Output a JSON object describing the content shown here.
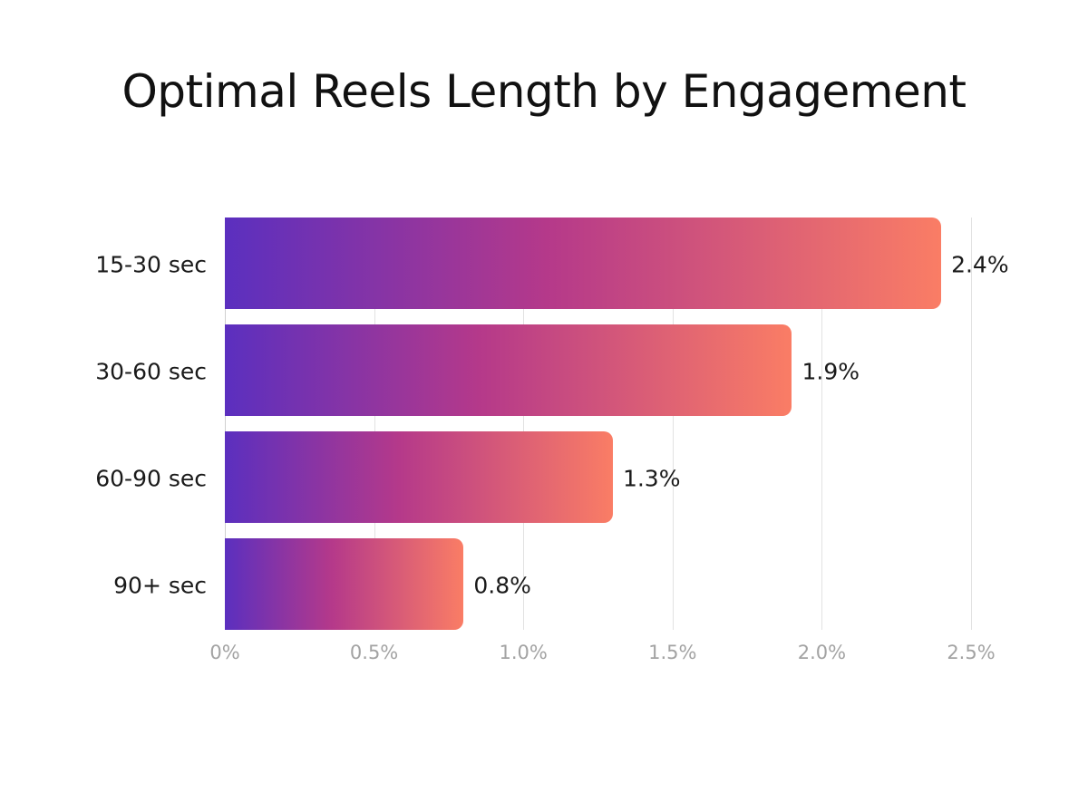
{
  "chart_data": {
    "type": "bar",
    "orientation": "horizontal",
    "title": "Optimal Reels Length by Engagement",
    "categories": [
      "15-30 sec",
      "30-60 sec",
      "60-90 sec",
      "90+ sec"
    ],
    "values": [
      2.4,
      1.9,
      1.3,
      0.8
    ],
    "value_labels": [
      "2.4%",
      "1.9%",
      "1.3%",
      "0.8%"
    ],
    "xlabel": "",
    "ylabel": "",
    "xlim": [
      0,
      2.5
    ],
    "x_ticks": [
      "0%",
      "0.5%",
      "1.0%",
      "1.5%",
      "2.0%",
      "2.5%"
    ],
    "grid": "vertical",
    "legend": "none",
    "bar_gradient": [
      "#5b2fbf",
      "#b5398a",
      "#fa7d65"
    ]
  }
}
